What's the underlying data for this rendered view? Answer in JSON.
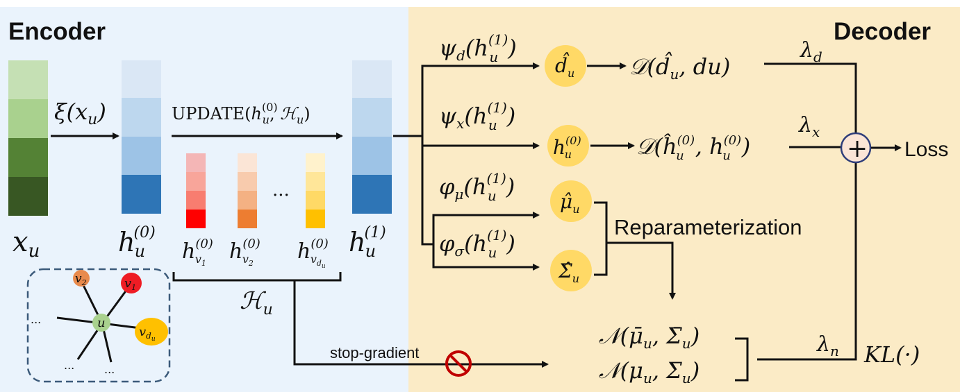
{
  "encoder": {
    "title": "Encoder",
    "x_label": "x_u",
    "xi_label": "ξ(x_u)",
    "h0_label": "h_u^(0)",
    "update_label": "UPDATE(h_u^(0), H_u)",
    "neighbor_labels": [
      "h_v1^(0)",
      "h_v2^(0)",
      "h_vdu^(0)"
    ],
    "ellipsis": "...",
    "h1_label": "h_u^(1)",
    "set_label": "H_u",
    "graph": {
      "center": "u",
      "nodes": [
        "v2",
        "v1",
        "v_du"
      ],
      "ellipses": [
        "...",
        "...",
        "..."
      ]
    },
    "colors": {
      "green": [
        "#c5e0b4",
        "#a9d18e",
        "#548235",
        "#385723"
      ],
      "blue": [
        "#dae7f5",
        "#bdd7ee",
        "#9dc3e6",
        "#2e75b6"
      ],
      "red": [
        "#f4b6b6",
        "#f8a59a",
        "#f87d70",
        "#ff0000"
      ],
      "orange": [
        "#fbe5d6",
        "#f8cbad",
        "#f4b183",
        "#ed7d31"
      ],
      "yellow": [
        "#fff2cc",
        "#ffe699",
        "#ffd966",
        "#ffc000"
      ]
    }
  },
  "decoder": {
    "title": "Decoder",
    "branch_labels": [
      "ψ_d(h_u^(1))",
      "ψ_x(h_u^(1))",
      "φ_μ(h_u^(1))",
      "φ_σ(h_u^(1))"
    ],
    "circle_labels": [
      "d̂_u",
      "h_u^(0)",
      "μ̂_u",
      "Σ̂_u"
    ],
    "loss_terms": [
      "D(d̂_u, du)",
      "D(ĥ_u^(0), h_u^(0))"
    ],
    "weights": [
      "λ_d",
      "λ_x",
      "λ_n"
    ],
    "reparam_label": "Reparameterization",
    "normal_labels": [
      "N(μ̄_u, Σ̄_u)",
      "N(μ_u, Σ_u)"
    ],
    "kl_label": "KL(·)",
    "loss_label": "Loss",
    "stop_gradient_label": "stop-gradient",
    "plus_symbol": "+"
  }
}
